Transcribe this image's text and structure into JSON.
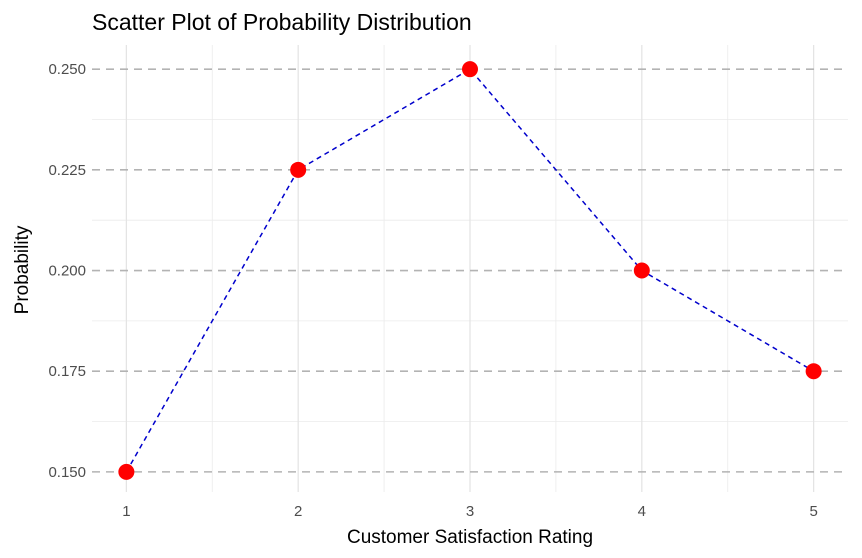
{
  "chart_data": {
    "type": "scatter",
    "title": "Scatter Plot of Probability Distribution",
    "xlabel": "Customer Satisfaction Rating",
    "ylabel": "Probability",
    "x": [
      1,
      2,
      3,
      4,
      5
    ],
    "xticks": [
      "1",
      "2",
      "3",
      "4",
      "5"
    ],
    "yticks": [
      "0.150",
      "0.175",
      "0.200",
      "0.225",
      "0.250"
    ],
    "ytick_values": [
      0.15,
      0.175,
      0.2,
      0.225,
      0.25
    ],
    "xlim": [
      0.8,
      5.2
    ],
    "ylim": [
      0.145,
      0.256
    ],
    "grid": true,
    "series": [
      {
        "values": [
          0.15,
          0.225,
          0.25,
          0.2,
          0.175
        ],
        "point_color": "#ff0000",
        "line_color": "#0000cc",
        "line_style": "dashed"
      }
    ]
  }
}
